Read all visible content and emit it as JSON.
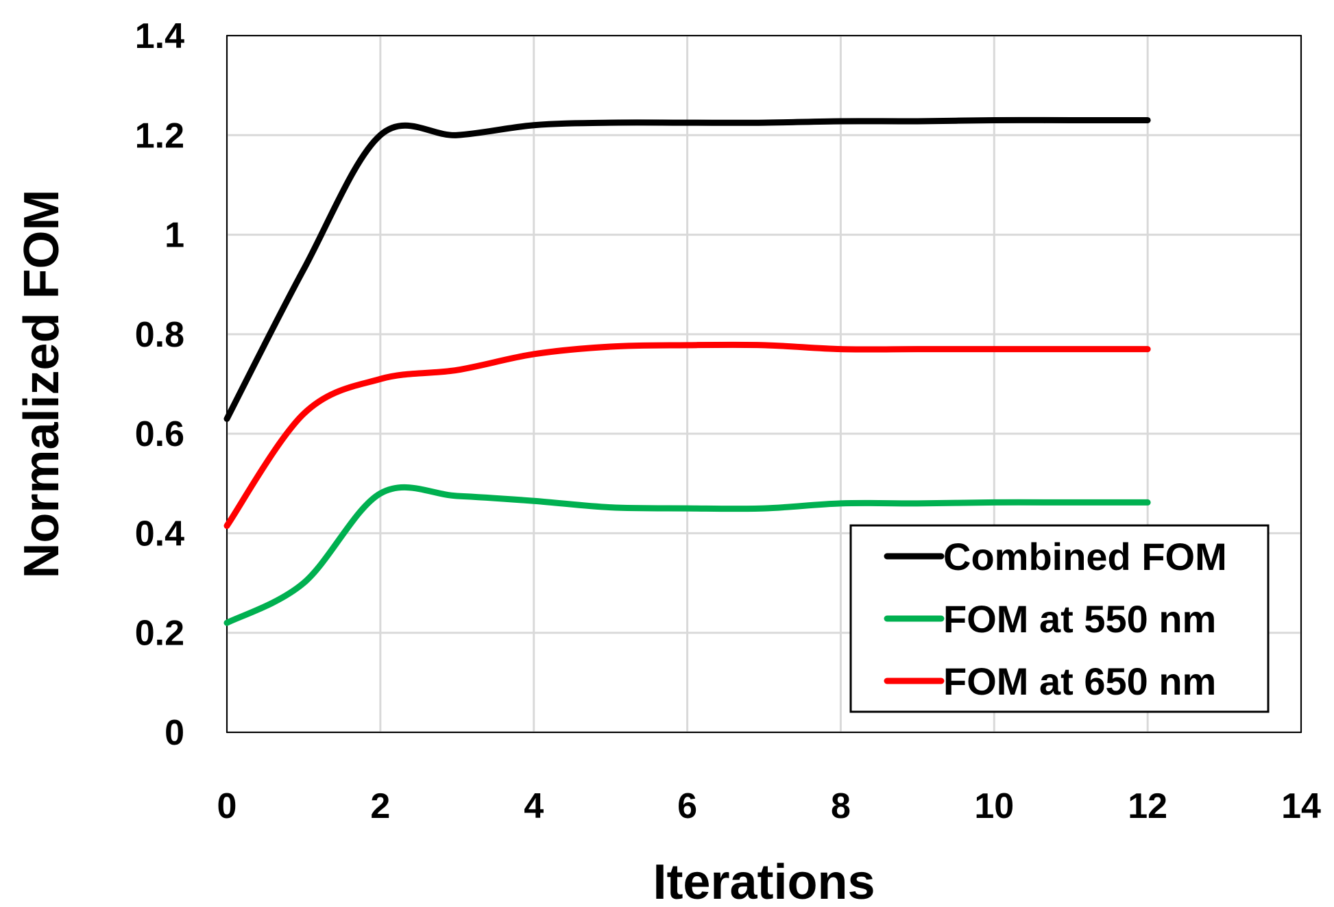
{
  "chart_data": {
    "type": "line",
    "xlabel": "Iterations",
    "ylabel": "Normalized FOM",
    "xlim": [
      0,
      14
    ],
    "ylim": [
      0,
      1.4
    ],
    "x_ticks": [
      "0",
      "2",
      "4",
      "6",
      "8",
      "10",
      "12",
      "14"
    ],
    "y_ticks": [
      "0",
      "0.2",
      "0.4",
      "0.6",
      "0.8",
      "1",
      "1.2",
      "1.4"
    ],
    "grid": true,
    "legend_position": "bottom-right",
    "x": [
      0,
      1,
      2,
      3,
      4,
      5,
      6,
      7,
      8,
      9,
      10,
      11,
      12
    ],
    "series": [
      {
        "name": "Combined FOM",
        "color": "#000000",
        "values": [
          0.63,
          0.93,
          1.2,
          1.2,
          1.22,
          1.225,
          1.225,
          1.225,
          1.228,
          1.228,
          1.23,
          1.23,
          1.23
        ]
      },
      {
        "name": "FOM at 550 nm",
        "color": "#00b050",
        "values": [
          0.22,
          0.3,
          0.48,
          0.475,
          0.465,
          0.452,
          0.45,
          0.45,
          0.46,
          0.46,
          0.462,
          0.462,
          0.462
        ]
      },
      {
        "name": "FOM at 650 nm",
        "color": "#ff0000",
        "values": [
          0.415,
          0.64,
          0.71,
          0.728,
          0.76,
          0.775,
          0.778,
          0.778,
          0.77,
          0.77,
          0.77,
          0.77,
          0.77
        ]
      }
    ]
  }
}
